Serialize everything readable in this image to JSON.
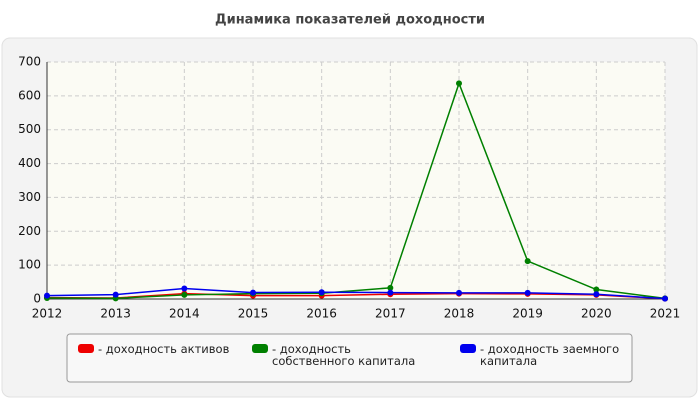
{
  "chart_data": {
    "type": "line",
    "title": "Динамика показателей доходности",
    "x": [
      2012,
      2013,
      2014,
      2015,
      2016,
      2017,
      2018,
      2019,
      2020,
      2021
    ],
    "series": [
      {
        "name": "- доходность активов",
        "color": "#ee0000",
        "values": [
          4,
          3,
          16,
          10,
          10,
          14,
          16,
          15,
          12,
          1
        ]
      },
      {
        "name": "- доходность собственного капитала",
        "color": "#008000",
        "values": [
          3,
          2,
          12,
          16,
          17,
          33,
          637,
          112,
          28,
          2
        ]
      },
      {
        "name": "- доходность заемного капитала",
        "color": "#0000ee",
        "values": [
          10,
          13,
          31,
          19,
          20,
          19,
          18,
          18,
          14,
          1
        ]
      }
    ],
    "xlim": [
      2012,
      2021
    ],
    "xticks": [
      2012,
      2013,
      2014,
      2015,
      2016,
      2017,
      2018,
      2019,
      2020,
      2021
    ],
    "ylim": [
      0,
      700
    ],
    "yticks": [
      0,
      100,
      200,
      300,
      400,
      500,
      600,
      700
    ],
    "grid": true,
    "legend": "bottom"
  }
}
